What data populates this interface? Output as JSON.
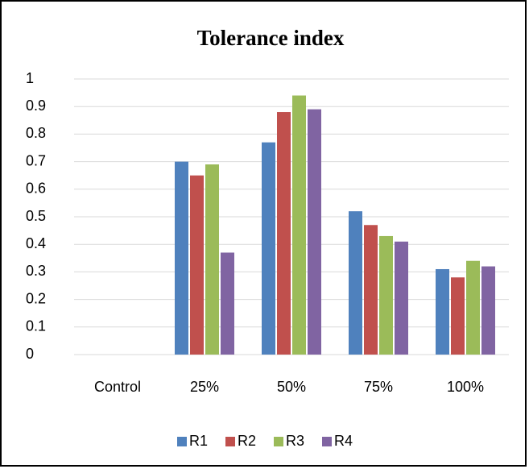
{
  "chart_data": {
    "type": "bar",
    "title": "Tolerance index",
    "categories": [
      "Control",
      "25%",
      "50%",
      "75%",
      "100%"
    ],
    "series": [
      {
        "name": "R1",
        "color": "#4f81bd",
        "values": [
          0,
          0.7,
          0.77,
          0.52,
          0.31
        ]
      },
      {
        "name": "R2",
        "color": "#c0504d",
        "values": [
          0,
          0.65,
          0.88,
          0.47,
          0.28
        ]
      },
      {
        "name": "R3",
        "color": "#9bbb59",
        "values": [
          0,
          0.69,
          0.94,
          0.43,
          0.34
        ]
      },
      {
        "name": "R4",
        "color": "#8064a2",
        "values": [
          0,
          0.37,
          0.89,
          0.41,
          0.32
        ]
      }
    ],
    "ylim": [
      0,
      1
    ],
    "yticks": [
      0,
      0.1,
      0.2,
      0.3,
      0.4,
      0.5,
      0.6,
      0.7,
      0.8,
      0.9,
      1
    ],
    "grid": true,
    "legend": "bottom"
  }
}
